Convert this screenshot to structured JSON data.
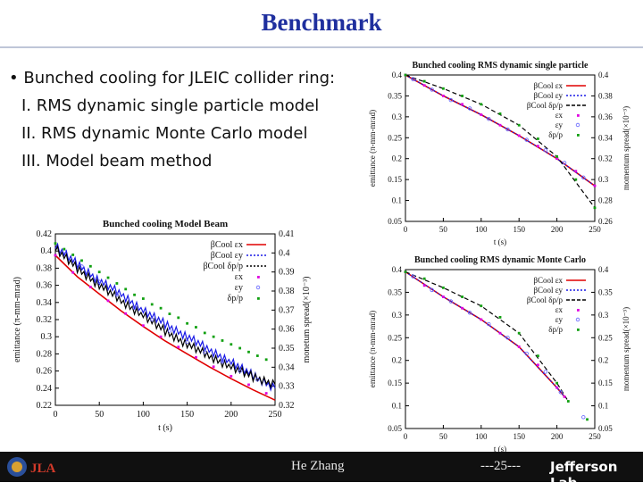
{
  "slide": {
    "title": "Benchmark",
    "bullet_main": "• Bunched cooling for JLEIC collider ring:",
    "bullet_items": [
      "I. RMS dynamic single particle model",
      "II. RMS dynamic Monte Carlo model",
      "III. Model beam method"
    ]
  },
  "footer": {
    "author": "He Zhang",
    "page": "---25---",
    "logo_text": "Jefferson Lab"
  },
  "chart_data": [
    {
      "type": "line",
      "title": "Bunched cooling RMS dynamic single particle",
      "xlabel": "t (s)",
      "ylabel": "emittance (π-mm-mrad)",
      "y2label": "momentum spread(×10⁻³)",
      "xlim": [
        0,
        250
      ],
      "ylim": [
        0.05,
        0.4
      ],
      "y2lim": [
        0.26,
        0.4
      ],
      "xticks": [
        "0",
        "50",
        "100",
        "150",
        "200",
        "250"
      ],
      "yticks": [
        "0.05",
        "0.1",
        "0.15",
        "0.2",
        "0.25",
        "0.3",
        "0.35",
        "0.4"
      ],
      "y2ticks": [
        "0.26",
        "0.28",
        "0.3",
        "0.32",
        "0.34",
        "0.36",
        "0.38",
        "0.4"
      ],
      "legend": [
        "βCool εx",
        "βCool εy",
        "βCool δp/p",
        "εx",
        "εy",
        "δp/p"
      ],
      "series": [
        {
          "name": "βCool εx",
          "color": "#e00000",
          "axis": "y1",
          "style": "solid",
          "x": [
            0,
            50,
            100,
            150,
            200,
            250
          ],
          "y": [
            0.4,
            0.35,
            0.305,
            0.255,
            0.2,
            0.135
          ]
        },
        {
          "name": "βCool εy",
          "color": "#1a1ae6",
          "axis": "y1",
          "style": "dotted",
          "x": [
            0,
            50,
            100,
            150,
            200,
            250
          ],
          "y": [
            0.4,
            0.35,
            0.305,
            0.255,
            0.2,
            0.135
          ]
        },
        {
          "name": "βCool δp/p",
          "color": "#000000",
          "axis": "y2",
          "style": "dashed",
          "x": [
            0,
            50,
            100,
            150,
            200,
            250
          ],
          "y": [
            0.4,
            0.387,
            0.372,
            0.352,
            0.322,
            0.273
          ]
        },
        {
          "name": "εx",
          "color": "#e000e0",
          "axis": "y1",
          "style": "points",
          "x": [
            0,
            25,
            50,
            75,
            100,
            125,
            150,
            175,
            200,
            225,
            250
          ],
          "y": [
            0.4,
            0.375,
            0.35,
            0.33,
            0.305,
            0.28,
            0.255,
            0.23,
            0.2,
            0.17,
            0.135
          ]
        },
        {
          "name": "εy",
          "color": "#6060ff",
          "axis": "y1",
          "style": "open",
          "x": [
            10,
            35,
            60,
            85,
            110,
            135,
            160,
            185,
            210,
            235
          ],
          "y": [
            0.39,
            0.365,
            0.34,
            0.32,
            0.295,
            0.27,
            0.245,
            0.22,
            0.19,
            0.155
          ]
        },
        {
          "name": "δp/p",
          "color": "#10a010",
          "axis": "y2",
          "style": "points",
          "x": [
            0,
            25,
            50,
            75,
            100,
            125,
            150,
            175,
            200,
            225,
            250
          ],
          "y": [
            0.4,
            0.394,
            0.387,
            0.38,
            0.372,
            0.363,
            0.352,
            0.339,
            0.322,
            0.3,
            0.273
          ]
        }
      ]
    },
    {
      "type": "line",
      "title": "Bunched cooling RMS dynamic Monte Carlo",
      "xlabel": "t (s)",
      "ylabel": "emittance (π-mm-mrad)",
      "y2label": "momentum spread(×10⁻³)",
      "xlim": [
        0,
        250
      ],
      "ylim": [
        0.05,
        0.4
      ],
      "y2lim": [
        0.05,
        0.4
      ],
      "xticks": [
        "0",
        "50",
        "100",
        "150",
        "200",
        "250"
      ],
      "yticks": [
        "0.05",
        "0.1",
        "0.15",
        "0.2",
        "0.25",
        "0.3",
        "0.35",
        "0.4"
      ],
      "y2ticks": [
        "0.05",
        "0.1",
        "0.15",
        "0.2",
        "0.25",
        "0.3",
        "0.35",
        "0.4"
      ],
      "legend": [
        "βCool εx",
        "βCool εy",
        "βCool δp/p",
        "εx",
        "εy",
        "δp/p"
      ],
      "series": [
        {
          "name": "βCool εx",
          "color": "#e00000",
          "axis": "y1",
          "style": "solid",
          "x": [
            0,
            50,
            100,
            150,
            200,
            210
          ],
          "y": [
            0.395,
            0.34,
            0.29,
            0.23,
            0.14,
            0.12
          ]
        },
        {
          "name": "βCool εy",
          "color": "#1a1ae6",
          "axis": "y1",
          "style": "dotted",
          "x": [
            0,
            50,
            100,
            150,
            200,
            210
          ],
          "y": [
            0.395,
            0.34,
            0.29,
            0.23,
            0.14,
            0.12
          ]
        },
        {
          "name": "βCool δp/p",
          "color": "#000000",
          "axis": "y2",
          "style": "dashed",
          "x": [
            0,
            50,
            100,
            150,
            200,
            215
          ],
          "y": [
            0.395,
            0.36,
            0.32,
            0.26,
            0.15,
            0.11
          ]
        },
        {
          "name": "εx",
          "color": "#e000e0",
          "axis": "y1",
          "style": "points",
          "x": [
            0,
            25,
            50,
            75,
            100,
            125,
            150,
            175,
            200,
            210
          ],
          "y": [
            0.395,
            0.365,
            0.34,
            0.315,
            0.29,
            0.26,
            0.23,
            0.19,
            0.14,
            0.12
          ]
        },
        {
          "name": "εy",
          "color": "#6060ff",
          "axis": "y1",
          "style": "open",
          "x": [
            10,
            35,
            60,
            85,
            110,
            135,
            160,
            185,
            205,
            235
          ],
          "y": [
            0.385,
            0.355,
            0.33,
            0.305,
            0.28,
            0.25,
            0.215,
            0.175,
            0.13,
            0.075
          ]
        },
        {
          "name": "δp/p",
          "color": "#10a010",
          "axis": "y2",
          "style": "points",
          "x": [
            0,
            25,
            50,
            75,
            100,
            125,
            150,
            175,
            200,
            215,
            240
          ],
          "y": [
            0.395,
            0.38,
            0.36,
            0.34,
            0.32,
            0.295,
            0.26,
            0.21,
            0.15,
            0.11,
            0.07
          ]
        }
      ]
    },
    {
      "type": "line",
      "title": "Bunched cooling Model Beam",
      "xlabel": "t (s)",
      "ylabel": "emittance (π-mm-mrad)",
      "y2label": "monetum spread(×10⁻³)",
      "xlim": [
        0,
        250
      ],
      "ylim": [
        0.22,
        0.42
      ],
      "y2lim": [
        0.32,
        0.41
      ],
      "xticks": [
        "0",
        "50",
        "100",
        "150",
        "200",
        "250"
      ],
      "yticks": [
        "0.22",
        "0.24",
        "0.26",
        "0.28",
        "0.3",
        "0.32",
        "0.34",
        "0.36",
        "0.38",
        "0.4",
        "0.42"
      ],
      "y2ticks": [
        "0.32",
        "0.33",
        "0.34",
        "0.35",
        "0.36",
        "0.37",
        "0.38",
        "0.39",
        "0.4",
        "0.41"
      ],
      "legend": [
        "βCool εx",
        "βCool εy",
        "βCool δp/p",
        "εx",
        "εy",
        "δp/p"
      ],
      "series": [
        {
          "name": "βCool εx",
          "color": "#e00000",
          "axis": "y1",
          "style": "solid",
          "x": [
            0,
            25,
            50,
            75,
            100,
            125,
            150,
            175,
            200,
            225,
            250
          ],
          "y": [
            0.395,
            0.37,
            0.35,
            0.33,
            0.312,
            0.295,
            0.28,
            0.265,
            0.251,
            0.238,
            0.226
          ]
        },
        {
          "name": "βCool εy",
          "color": "#1a1ae6",
          "axis": "y1",
          "style": "noisy",
          "x": [
            0,
            25,
            50,
            75,
            100,
            125,
            150,
            175,
            200,
            225,
            250
          ],
          "y": [
            0.405,
            0.385,
            0.365,
            0.35,
            0.33,
            0.315,
            0.3,
            0.285,
            0.27,
            0.255,
            0.24
          ]
        },
        {
          "name": "βCool δp/p",
          "color": "#000000",
          "axis": "y2",
          "style": "noisy",
          "x": [
            0,
            25,
            50,
            75,
            100,
            125,
            150,
            175,
            200,
            225,
            250
          ],
          "y": [
            0.402,
            0.392,
            0.383,
            0.375,
            0.367,
            0.359,
            0.352,
            0.346,
            0.34,
            0.335,
            0.331
          ]
        },
        {
          "name": "εx",
          "color": "#e000e0",
          "axis": "y1",
          "style": "points",
          "x": [
            0,
            20,
            40,
            60,
            80,
            100,
            120,
            140,
            160,
            180,
            200,
            220,
            240
          ],
          "y": [
            0.395,
            0.375,
            0.358,
            0.342,
            0.327,
            0.313,
            0.3,
            0.288,
            0.276,
            0.265,
            0.254,
            0.244,
            0.234
          ]
        },
        {
          "name": "εy",
          "color": "#6060ff",
          "axis": "y1",
          "style": "open",
          "x": [
            10,
            30,
            50,
            70,
            90,
            110,
            130,
            150,
            170,
            190,
            210,
            230
          ],
          "y": [
            0.4,
            0.382,
            0.364,
            0.349,
            0.334,
            0.32,
            0.307,
            0.294,
            0.282,
            0.271,
            0.26,
            0.25
          ]
        },
        {
          "name": "δp/p",
          "color": "#10a010",
          "axis": "y2",
          "style": "points",
          "x": [
            0,
            10,
            20,
            30,
            40,
            50,
            60,
            70,
            80,
            90,
            100,
            110,
            120,
            130,
            140,
            150,
            160,
            170,
            180,
            190,
            200,
            210,
            220,
            230,
            240
          ],
          "y": [
            0.405,
            0.402,
            0.399,
            0.396,
            0.393,
            0.39,
            0.387,
            0.384,
            0.381,
            0.378,
            0.376,
            0.373,
            0.371,
            0.368,
            0.366,
            0.363,
            0.361,
            0.358,
            0.356,
            0.354,
            0.352,
            0.35,
            0.348,
            0.346,
            0.344
          ]
        }
      ]
    }
  ]
}
